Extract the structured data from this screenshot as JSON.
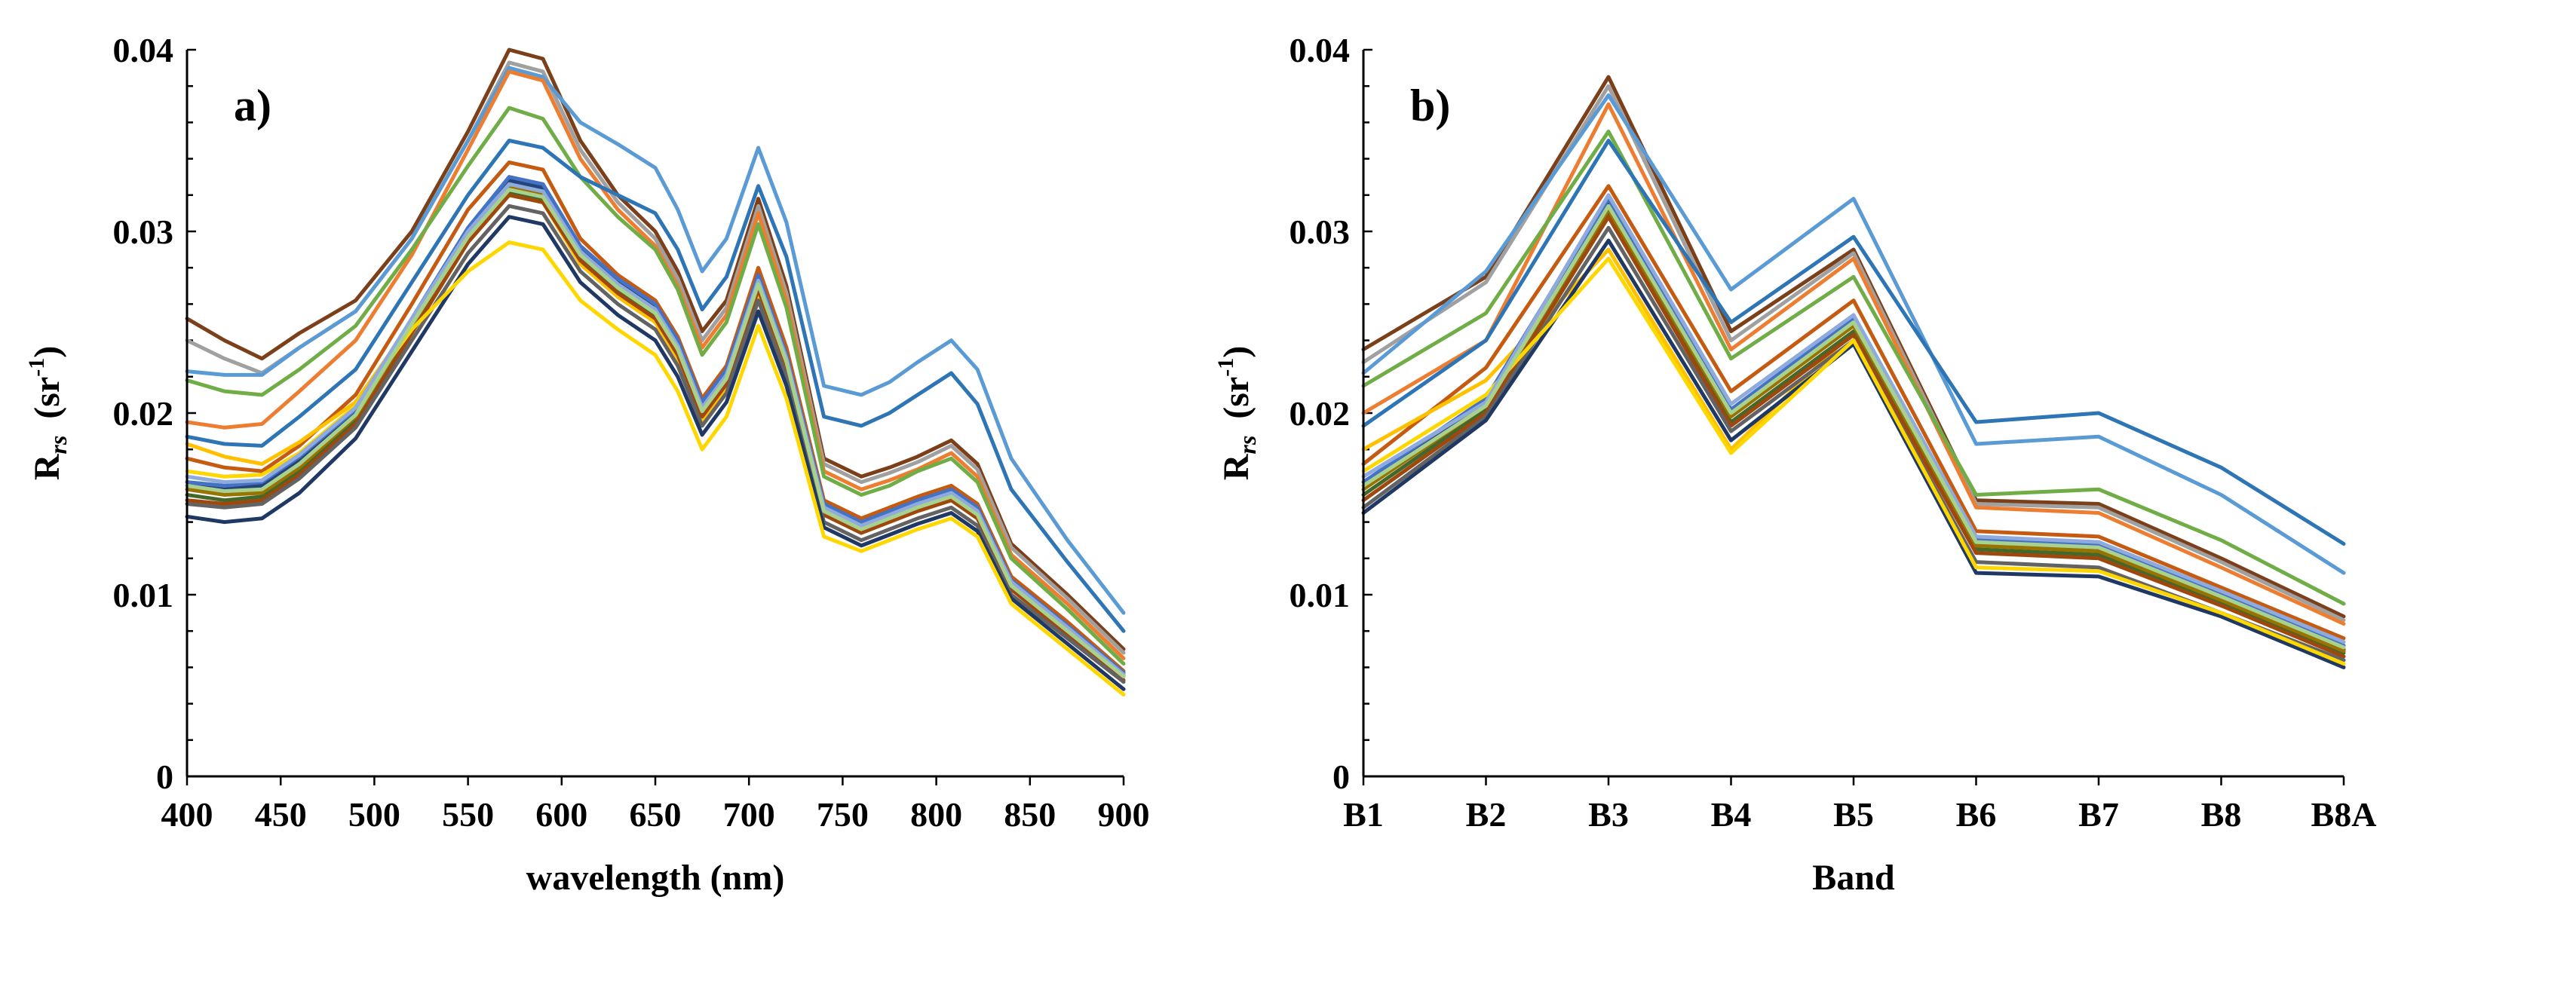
{
  "chart_data": [
    {
      "type": "line",
      "panel_label": "a)",
      "xlabel": "wavelength (nm)",
      "ylabel_main": "R",
      "ylabel_sub": "rs",
      "ylabel_unit_open": "(sr",
      "ylabel_unit_exp": "-1",
      "ylabel_unit_close": ")",
      "xlim": [
        400,
        900
      ],
      "ylim": [
        0,
        0.04
      ],
      "xticks": [
        400,
        450,
        500,
        550,
        600,
        650,
        700,
        750,
        800,
        850,
        900
      ],
      "xtick_labels": [
        "400",
        "450",
        "500",
        "550",
        "600",
        "650",
        "700",
        "750",
        "800",
        "850",
        "900"
      ],
      "yticks": [
        0,
        0.01,
        0.02,
        0.03,
        0.04
      ],
      "ytick_labels": [
        "0",
        "0.01",
        "0.02",
        "0.03",
        "0.04"
      ],
      "x": [
        400,
        420,
        440,
        460,
        490,
        520,
        550,
        572,
        590,
        610,
        630,
        650,
        662,
        675,
        688,
        705,
        720,
        740,
        760,
        775,
        790,
        808,
        822,
        840,
        870,
        900
      ],
      "profiles": [
        {
          "name": "s1",
          "color": "#7b3f1a",
          "values": [
            0.0252,
            0.024,
            0.023,
            0.0244,
            0.0262,
            0.03,
            0.0355,
            0.04,
            0.0395,
            0.035,
            0.032,
            0.03,
            0.0278,
            0.0245,
            0.0262,
            0.0318,
            0.027,
            0.0175,
            0.0165,
            0.017,
            0.0176,
            0.0185,
            0.0172,
            0.0128,
            0.01,
            0.007
          ]
        },
        {
          "name": "s2",
          "color": "#a0a0a0",
          "values": [
            0.024,
            0.023,
            0.0222,
            0.0236,
            0.0256,
            0.0296,
            0.035,
            0.0393,
            0.0388,
            0.0345,
            0.0316,
            0.0296,
            0.0274,
            0.024,
            0.0258,
            0.0314,
            0.0266,
            0.0172,
            0.0162,
            0.0167,
            0.0173,
            0.0182,
            0.0169,
            0.0126,
            0.0098,
            0.0068
          ]
        },
        {
          "name": "s3",
          "color": "#5b9bd5",
          "values": [
            0.0223,
            0.0221,
            0.0221,
            0.0236,
            0.0256,
            0.0296,
            0.035,
            0.039,
            0.0385,
            0.036,
            0.0348,
            0.0335,
            0.0312,
            0.0278,
            0.0296,
            0.0346,
            0.0305,
            0.0215,
            0.021,
            0.0217,
            0.0228,
            0.024,
            0.0224,
            0.0175,
            0.013,
            0.009
          ]
        },
        {
          "name": "s4",
          "color": "#ed7d31",
          "values": [
            0.0195,
            0.0192,
            0.0194,
            0.0212,
            0.024,
            0.0287,
            0.0345,
            0.0388,
            0.0383,
            0.034,
            0.0312,
            0.0292,
            0.027,
            0.0236,
            0.0254,
            0.031,
            0.0262,
            0.0168,
            0.0158,
            0.0163,
            0.0169,
            0.0178,
            0.0165,
            0.0122,
            0.0095,
            0.0065
          ]
        },
        {
          "name": "s5",
          "color": "#70ad47",
          "values": [
            0.0218,
            0.0212,
            0.021,
            0.0224,
            0.0248,
            0.029,
            0.0336,
            0.0368,
            0.0362,
            0.033,
            0.0308,
            0.029,
            0.0268,
            0.0232,
            0.025,
            0.0304,
            0.0258,
            0.0165,
            0.0155,
            0.016,
            0.0168,
            0.0175,
            0.0162,
            0.012,
            0.0092,
            0.0062
          ]
        },
        {
          "name": "s6",
          "color": "#2e75b6",
          "values": [
            0.0187,
            0.0183,
            0.0182,
            0.0198,
            0.0224,
            0.0272,
            0.032,
            0.035,
            0.0346,
            0.033,
            0.032,
            0.031,
            0.029,
            0.0257,
            0.0275,
            0.0325,
            0.0286,
            0.0198,
            0.0193,
            0.02,
            0.021,
            0.0222,
            0.0205,
            0.0158,
            0.0118,
            0.008
          ]
        },
        {
          "name": "s7",
          "color": "#c55a11",
          "values": [
            0.0175,
            0.017,
            0.0168,
            0.0182,
            0.021,
            0.026,
            0.0312,
            0.0338,
            0.0334,
            0.0296,
            0.0276,
            0.0262,
            0.0242,
            0.0208,
            0.0226,
            0.028,
            0.0236,
            0.0152,
            0.0142,
            0.0148,
            0.0154,
            0.016,
            0.015,
            0.011,
            0.0085,
            0.0058
          ]
        },
        {
          "name": "s8",
          "color": "#ffc000",
          "values": [
            0.0183,
            0.0176,
            0.0172,
            0.0184,
            0.0206,
            0.025,
            0.0296,
            0.032,
            0.0316,
            0.0282,
            0.0264,
            0.025,
            0.023,
            0.0196,
            0.0214,
            0.0266,
            0.0224,
            0.0145,
            0.0136,
            0.014,
            0.0146,
            0.0152,
            0.0142,
            0.0104,
            0.008,
            0.0055
          ]
        },
        {
          "name": "s9",
          "color": "#264478",
          "values": [
            0.016,
            0.0158,
            0.016,
            0.0174,
            0.02,
            0.025,
            0.03,
            0.0328,
            0.0324,
            0.029,
            0.0272,
            0.0258,
            0.0238,
            0.0204,
            0.0222,
            0.0274,
            0.023,
            0.0148,
            0.0138,
            0.0144,
            0.015,
            0.0156,
            0.0146,
            0.0107,
            0.0082,
            0.0056
          ]
        },
        {
          "name": "s10",
          "color": "#43682b",
          "values": [
            0.0155,
            0.0152,
            0.0154,
            0.0168,
            0.0196,
            0.0246,
            0.0296,
            0.0322,
            0.0318,
            0.0286,
            0.0268,
            0.0254,
            0.0234,
            0.02,
            0.0218,
            0.027,
            0.0228,
            0.0146,
            0.0136,
            0.0142,
            0.0148,
            0.0154,
            0.0144,
            0.0105,
            0.008,
            0.0055
          ]
        },
        {
          "name": "s11",
          "color": "#9e480e",
          "values": [
            0.0152,
            0.015,
            0.0152,
            0.0166,
            0.0194,
            0.0244,
            0.0294,
            0.032,
            0.0316,
            0.0284,
            0.0266,
            0.0252,
            0.0232,
            0.0198,
            0.0216,
            0.0268,
            0.0226,
            0.0144,
            0.0134,
            0.014,
            0.0146,
            0.0152,
            0.0142,
            0.0103,
            0.0078,
            0.0053
          ]
        },
        {
          "name": "s12",
          "color": "#4472c4",
          "values": [
            0.0162,
            0.016,
            0.0162,
            0.0176,
            0.0202,
            0.0252,
            0.0302,
            0.033,
            0.0326,
            0.0292,
            0.0274,
            0.026,
            0.024,
            0.0206,
            0.0224,
            0.0276,
            0.0232,
            0.015,
            0.014,
            0.0146,
            0.0152,
            0.0158,
            0.0148,
            0.0108,
            0.0083,
            0.0057
          ]
        },
        {
          "name": "s13",
          "color": "#636363",
          "values": [
            0.015,
            0.0148,
            0.015,
            0.0164,
            0.0192,
            0.024,
            0.0288,
            0.0314,
            0.031,
            0.0278,
            0.026,
            0.0246,
            0.0226,
            0.0193,
            0.0211,
            0.0262,
            0.022,
            0.014,
            0.013,
            0.0136,
            0.0142,
            0.0148,
            0.0138,
            0.01,
            0.0076,
            0.0052
          ]
        },
        {
          "name": "s14",
          "color": "#997300",
          "values": [
            0.0158,
            0.0155,
            0.0156,
            0.017,
            0.0198,
            0.0248,
            0.0298,
            0.0325,
            0.0321,
            0.0288,
            0.027,
            0.0256,
            0.0236,
            0.0202,
            0.022,
            0.0272,
            0.0229,
            0.0147,
            0.0137,
            0.0143,
            0.0149,
            0.0155,
            0.0145,
            0.0106,
            0.0081,
            0.0056
          ]
        },
        {
          "name": "s15",
          "color": "#1f3864",
          "values": [
            0.0143,
            0.014,
            0.0142,
            0.0156,
            0.0186,
            0.0234,
            0.0282,
            0.0308,
            0.0304,
            0.0272,
            0.0254,
            0.024,
            0.022,
            0.0188,
            0.0206,
            0.0256,
            0.0215,
            0.0137,
            0.0127,
            0.0133,
            0.0139,
            0.0145,
            0.0135,
            0.0098,
            0.0073,
            0.0048
          ]
        },
        {
          "name": "s16",
          "color": "#ffd700",
          "values": [
            0.0168,
            0.0165,
            0.0166,
            0.0178,
            0.0204,
            0.0246,
            0.0278,
            0.0294,
            0.029,
            0.0262,
            0.0246,
            0.0232,
            0.0212,
            0.018,
            0.0198,
            0.0248,
            0.0208,
            0.0132,
            0.0124,
            0.013,
            0.0136,
            0.0142,
            0.0132,
            0.0095,
            0.007,
            0.0045
          ]
        },
        {
          "name": "s17",
          "color": "#8faadc",
          "values": [
            0.0165,
            0.0162,
            0.0163,
            0.0177,
            0.0203,
            0.0252,
            0.03,
            0.0326,
            0.0322,
            0.0289,
            0.0271,
            0.0257,
            0.0237,
            0.0203,
            0.0221,
            0.0273,
            0.023,
            0.0148,
            0.0138,
            0.0144,
            0.015,
            0.0156,
            0.0146,
            0.0107,
            0.0082,
            0.0056
          ]
        },
        {
          "name": "s18",
          "color": "#a9d18e",
          "values": [
            0.016,
            0.0157,
            0.0158,
            0.0172,
            0.0199,
            0.0249,
            0.0297,
            0.0323,
            0.0319,
            0.0287,
            0.0269,
            0.0255,
            0.0235,
            0.0201,
            0.0219,
            0.0271,
            0.0228,
            0.0146,
            0.0136,
            0.0142,
            0.0148,
            0.0154,
            0.0144,
            0.0105,
            0.008,
            0.0055
          ]
        }
      ]
    },
    {
      "type": "line",
      "panel_label": "b)",
      "xlabel": "Band",
      "ylabel_main": "R",
      "ylabel_sub": "rs",
      "ylabel_unit_open": "(sr",
      "ylabel_unit_exp": "-1",
      "ylabel_unit_close": ")",
      "categories": [
        "B1",
        "B2",
        "B3",
        "B4",
        "B5",
        "B6",
        "B7",
        "B8",
        "B8A"
      ],
      "ylim": [
        0,
        0.04
      ],
      "yticks": [
        0,
        0.01,
        0.02,
        0.03,
        0.04
      ],
      "ytick_labels": [
        "0",
        "0.01",
        "0.02",
        "0.03",
        "0.04"
      ],
      "profiles": [
        {
          "name": "s1",
          "color": "#7b3f1a",
          "values": [
            0.0235,
            0.0275,
            0.0385,
            0.0245,
            0.029,
            0.0152,
            0.015,
            0.012,
            0.0088
          ]
        },
        {
          "name": "s2",
          "color": "#a0a0a0",
          "values": [
            0.0228,
            0.0272,
            0.038,
            0.024,
            0.0288,
            0.015,
            0.0148,
            0.0118,
            0.0086
          ]
        },
        {
          "name": "s3",
          "color": "#5b9bd5",
          "values": [
            0.0222,
            0.0278,
            0.0375,
            0.0268,
            0.0318,
            0.0183,
            0.0187,
            0.0155,
            0.0112
          ]
        },
        {
          "name": "s4",
          "color": "#ed7d31",
          "values": [
            0.02,
            0.024,
            0.037,
            0.0235,
            0.0285,
            0.0148,
            0.0145,
            0.0115,
            0.0084
          ]
        },
        {
          "name": "s5",
          "color": "#70ad47",
          "values": [
            0.0215,
            0.0255,
            0.0355,
            0.023,
            0.0275,
            0.0155,
            0.0158,
            0.013,
            0.0095
          ]
        },
        {
          "name": "s6",
          "color": "#2e75b6",
          "values": [
            0.0193,
            0.024,
            0.035,
            0.025,
            0.0297,
            0.0195,
            0.02,
            0.017,
            0.0128
          ]
        },
        {
          "name": "s7",
          "color": "#c55a11",
          "values": [
            0.0172,
            0.0225,
            0.0325,
            0.0212,
            0.0262,
            0.0135,
            0.0132,
            0.0104,
            0.0076
          ]
        },
        {
          "name": "s8",
          "color": "#ffc000",
          "values": [
            0.018,
            0.0218,
            0.029,
            0.018,
            0.0245,
            0.013,
            0.0127,
            0.01,
            0.0072
          ]
        },
        {
          "name": "s9",
          "color": "#264478",
          "values": [
            0.016,
            0.0205,
            0.0315,
            0.02,
            0.025,
            0.0128,
            0.0125,
            0.0098,
            0.007
          ]
        },
        {
          "name": "s10",
          "color": "#43682b",
          "values": [
            0.0155,
            0.0202,
            0.031,
            0.0195,
            0.0245,
            0.0125,
            0.0122,
            0.0096,
            0.0068
          ]
        },
        {
          "name": "s11",
          "color": "#9e480e",
          "values": [
            0.0152,
            0.02,
            0.0308,
            0.0193,
            0.0243,
            0.0123,
            0.012,
            0.0094,
            0.0066
          ]
        },
        {
          "name": "s12",
          "color": "#4472c4",
          "values": [
            0.0162,
            0.0208,
            0.0318,
            0.0202,
            0.0252,
            0.013,
            0.0127,
            0.01,
            0.0072
          ]
        },
        {
          "name": "s13",
          "color": "#636363",
          "values": [
            0.0148,
            0.0198,
            0.0302,
            0.019,
            0.024,
            0.0118,
            0.0115,
            0.009,
            0.0064
          ]
        },
        {
          "name": "s14",
          "color": "#997300",
          "values": [
            0.0158,
            0.0204,
            0.0312,
            0.0198,
            0.0248,
            0.0127,
            0.0124,
            0.0097,
            0.0069
          ]
        },
        {
          "name": "s15",
          "color": "#1f3864",
          "values": [
            0.0145,
            0.0196,
            0.0295,
            0.0185,
            0.0238,
            0.0112,
            0.011,
            0.0088,
            0.006
          ]
        },
        {
          "name": "s16",
          "color": "#ffd700",
          "values": [
            0.0168,
            0.021,
            0.0285,
            0.0178,
            0.024,
            0.0115,
            0.0113,
            0.009,
            0.0062
          ]
        },
        {
          "name": "s17",
          "color": "#8faadc",
          "values": [
            0.0165,
            0.0206,
            0.032,
            0.0205,
            0.0254,
            0.0132,
            0.0129,
            0.0102,
            0.0074
          ]
        },
        {
          "name": "s18",
          "color": "#a9d18e",
          "values": [
            0.016,
            0.0204,
            0.0314,
            0.02,
            0.025,
            0.0129,
            0.0126,
            0.0099,
            0.0071
          ]
        }
      ]
    }
  ]
}
